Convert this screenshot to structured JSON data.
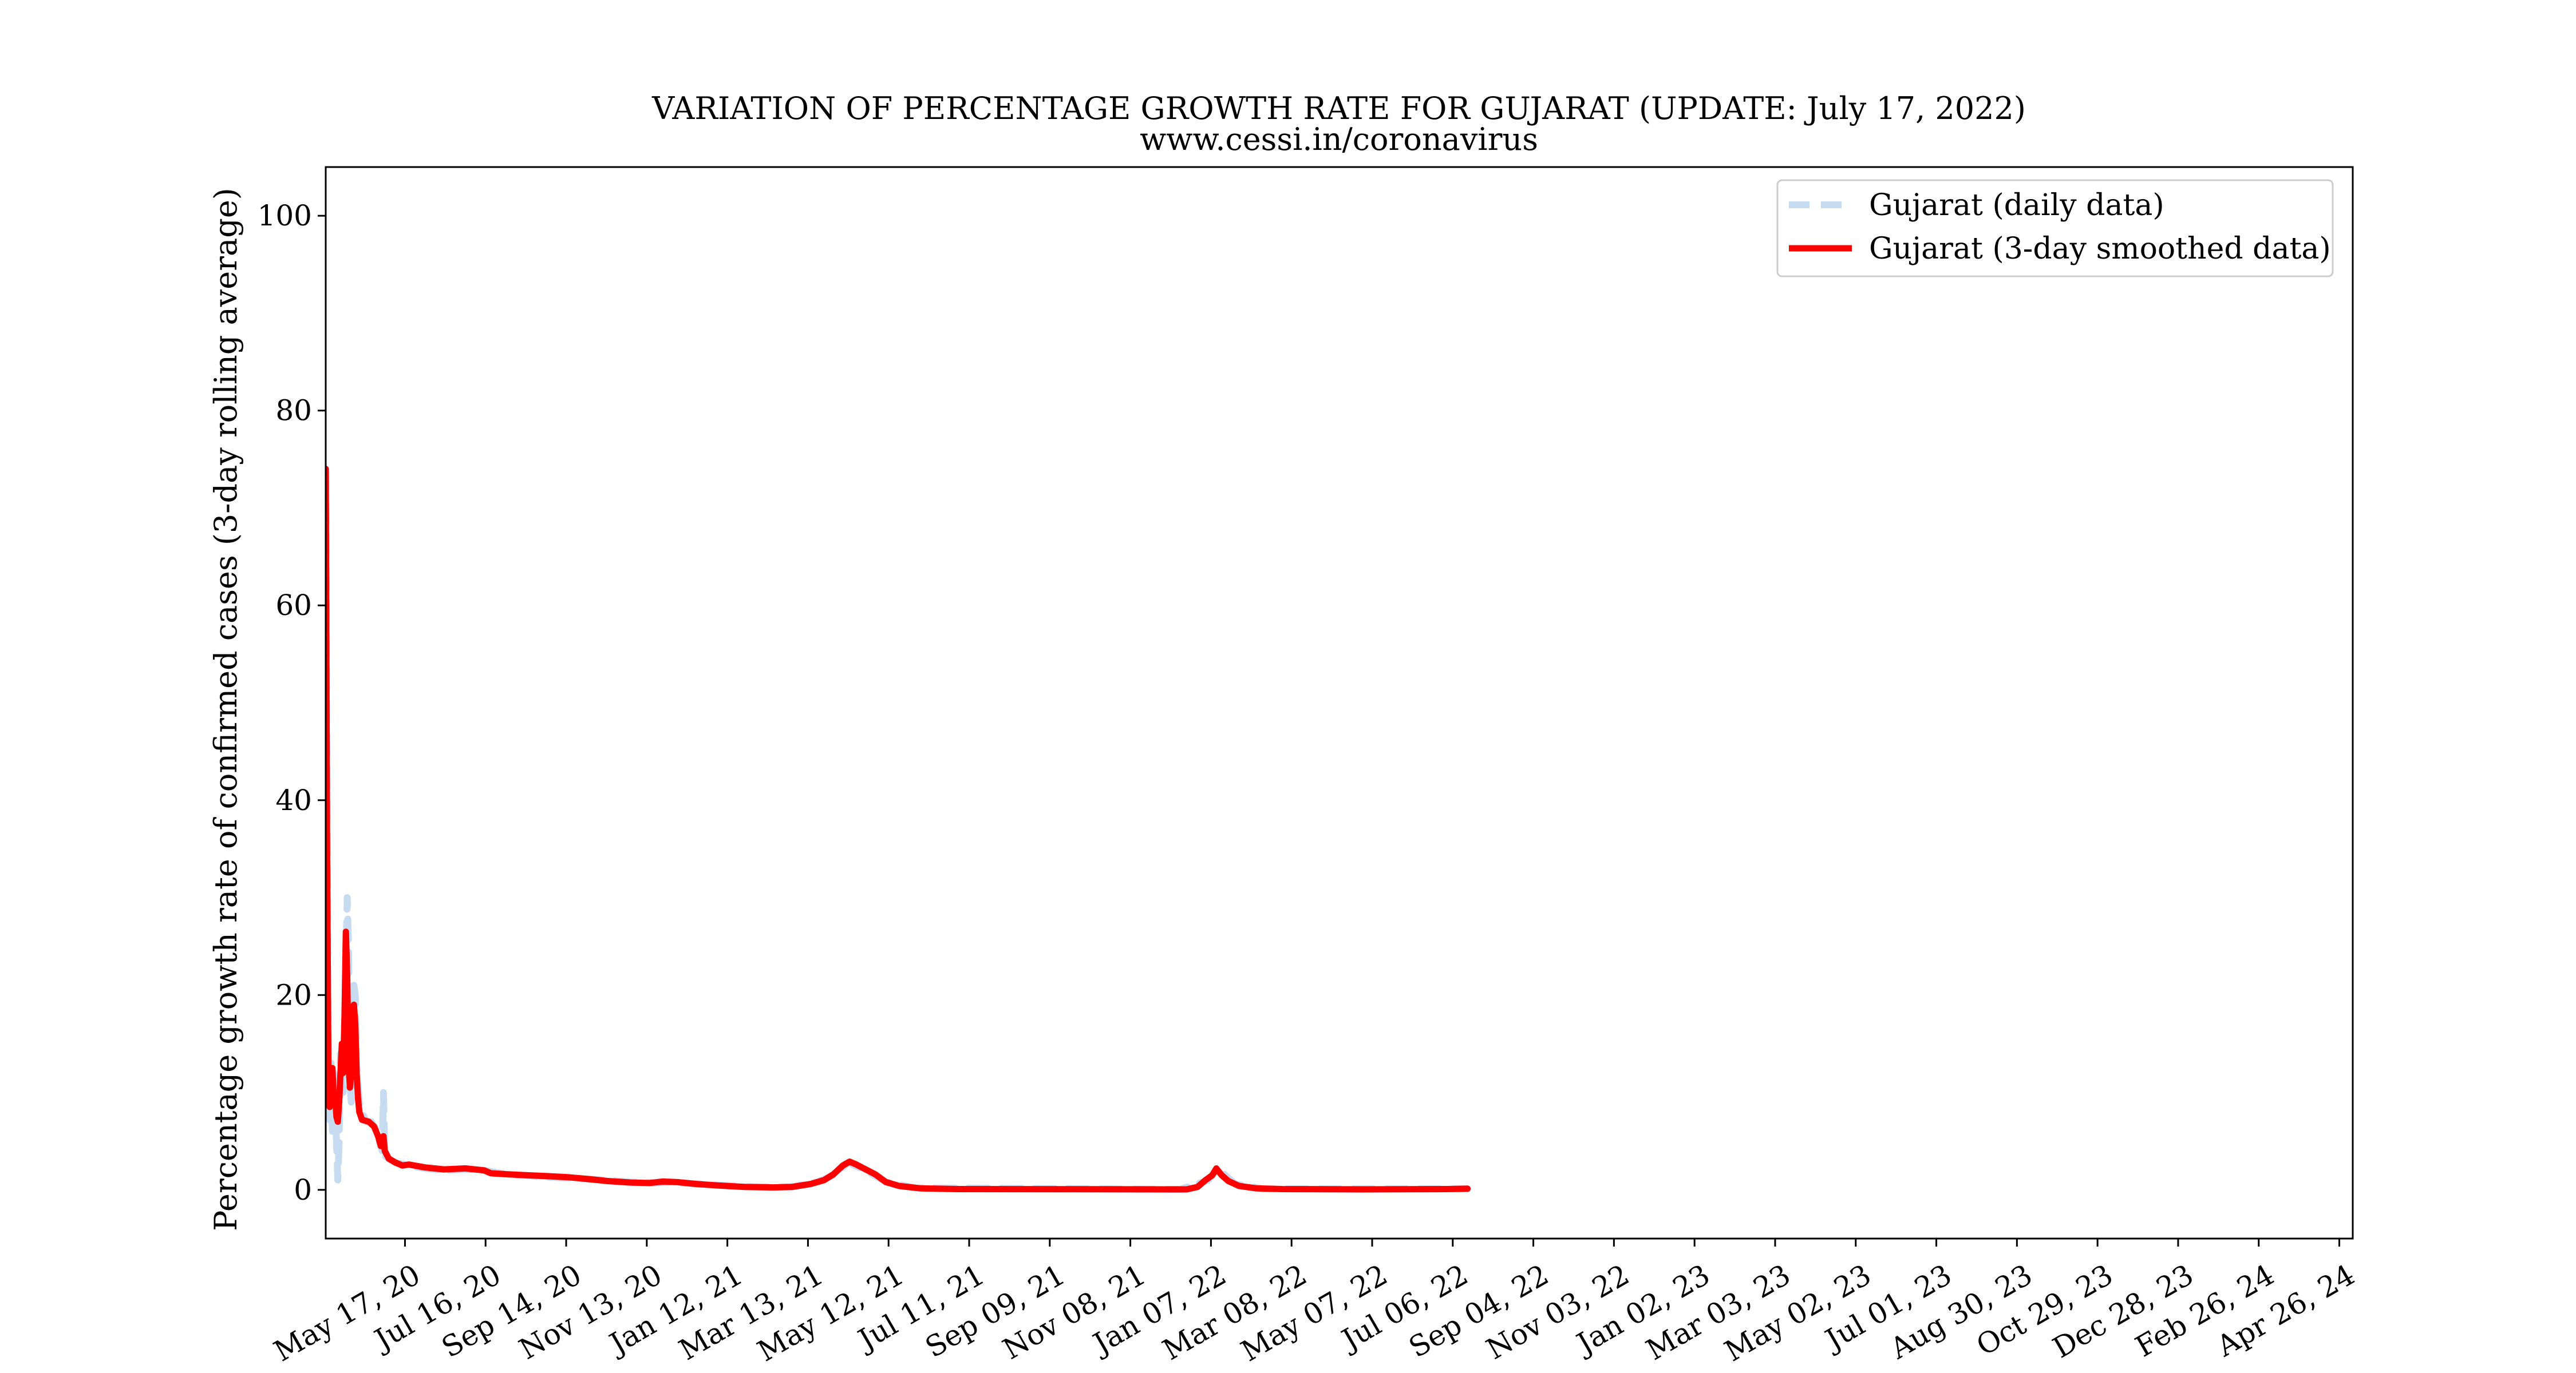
{
  "chart_data": {
    "type": "line",
    "title": "VARIATION OF PERCENTAGE GROWTH RATE FOR GUJARAT (UPDATE: July 17, 2022)",
    "subtitle": "www.cessi.in/coronavirus",
    "xlabel": "",
    "ylabel": "Percentage growth rate of confirmed cases (3-day rolling average)",
    "x_type": "date",
    "xlim": [
      "2020-03-19",
      "2024-05-06"
    ],
    "ylim": [
      -5,
      105
    ],
    "yticks": [
      0,
      20,
      40,
      60,
      80,
      100
    ],
    "xticks": [
      {
        "date": "2020-05-17",
        "label": "May 17, 20"
      },
      {
        "date": "2020-07-16",
        "label": "Jul 16, 20"
      },
      {
        "date": "2020-09-14",
        "label": "Sep 14, 20"
      },
      {
        "date": "2020-11-13",
        "label": "Nov 13, 20"
      },
      {
        "date": "2021-01-12",
        "label": "Jan 12, 21"
      },
      {
        "date": "2021-03-13",
        "label": "Mar 13, 21"
      },
      {
        "date": "2021-05-12",
        "label": "May 12, 21"
      },
      {
        "date": "2021-07-11",
        "label": "Jul 11, 21"
      },
      {
        "date": "2021-09-09",
        "label": "Sep 09, 21"
      },
      {
        "date": "2021-11-08",
        "label": "Nov 08, 21"
      },
      {
        "date": "2022-01-07",
        "label": "Jan 07, 22"
      },
      {
        "date": "2022-03-08",
        "label": "Mar 08, 22"
      },
      {
        "date": "2022-05-07",
        "label": "May 07, 22"
      },
      {
        "date": "2022-07-06",
        "label": "Jul 06, 22"
      },
      {
        "date": "2022-09-04",
        "label": "Sep 04, 22"
      },
      {
        "date": "2022-11-03",
        "label": "Nov 03, 22"
      },
      {
        "date": "2023-01-02",
        "label": "Jan 02, 23"
      },
      {
        "date": "2023-03-03",
        "label": "Mar 03, 23"
      },
      {
        "date": "2023-05-02",
        "label": "May 02, 23"
      },
      {
        "date": "2023-07-01",
        "label": "Jul 01, 23"
      },
      {
        "date": "2023-08-30",
        "label": "Aug 30, 23"
      },
      {
        "date": "2023-10-29",
        "label": "Oct 29, 23"
      },
      {
        "date": "2023-12-28",
        "label": "Dec 28, 23"
      },
      {
        "date": "2024-02-26",
        "label": "Feb 26, 24"
      },
      {
        "date": "2024-04-26",
        "label": "Apr 26, 24"
      }
    ],
    "grid": false,
    "legend_position": "top-right",
    "series": [
      {
        "name": "Gujarat (daily data)",
        "color": "#c6dbef",
        "style": "dashed",
        "points": [
          {
            "x": "2020-03-19",
            "y": 74
          },
          {
            "x": "2020-03-20",
            "y": 40
          },
          {
            "x": "2020-03-21",
            "y": 10
          },
          {
            "x": "2020-03-22",
            "y": 7
          },
          {
            "x": "2020-03-23",
            "y": 13
          },
          {
            "x": "2020-03-24",
            "y": 6
          },
          {
            "x": "2020-03-25",
            "y": 12
          },
          {
            "x": "2020-03-26",
            "y": 9
          },
          {
            "x": "2020-03-27",
            "y": 5
          },
          {
            "x": "2020-03-28",
            "y": 1
          },
          {
            "x": "2020-03-29",
            "y": 5
          },
          {
            "x": "2020-03-30",
            "y": 14
          },
          {
            "x": "2020-04-01",
            "y": 10
          },
          {
            "x": "2020-04-02",
            "y": 16
          },
          {
            "x": "2020-04-04",
            "y": 30
          },
          {
            "x": "2020-04-05",
            "y": 25
          },
          {
            "x": "2020-04-06",
            "y": 11
          },
          {
            "x": "2020-04-07",
            "y": 9
          },
          {
            "x": "2020-04-08",
            "y": 13
          },
          {
            "x": "2020-04-09",
            "y": 21
          },
          {
            "x": "2020-04-10",
            "y": 20
          },
          {
            "x": "2020-04-11",
            "y": 13
          },
          {
            "x": "2020-04-12",
            "y": 11
          },
          {
            "x": "2020-04-13",
            "y": 9
          },
          {
            "x": "2020-04-15",
            "y": 8
          },
          {
            "x": "2020-04-18",
            "y": 7
          },
          {
            "x": "2020-04-22",
            "y": 7
          },
          {
            "x": "2020-04-26",
            "y": 6
          },
          {
            "x": "2020-04-28",
            "y": 5
          },
          {
            "x": "2020-04-30",
            "y": 4
          },
          {
            "x": "2020-05-01",
            "y": 10
          },
          {
            "x": "2020-05-02",
            "y": 3.5
          },
          {
            "x": "2020-05-05",
            "y": 3.2
          },
          {
            "x": "2020-05-10",
            "y": 2.8
          },
          {
            "x": "2020-05-20",
            "y": 2.5
          },
          {
            "x": "2020-06-01",
            "y": 2.2
          },
          {
            "x": "2020-06-15",
            "y": 2
          },
          {
            "x": "2020-07-01",
            "y": 2.1
          },
          {
            "x": "2020-07-15",
            "y": 2
          },
          {
            "x": "2020-08-01",
            "y": 1.6
          },
          {
            "x": "2020-09-01",
            "y": 1.3
          },
          {
            "x": "2020-10-01",
            "y": 1.1
          },
          {
            "x": "2020-11-01",
            "y": 0.8
          },
          {
            "x": "2020-11-20",
            "y": 0.7
          },
          {
            "x": "2020-12-01",
            "y": 0.8
          },
          {
            "x": "2021-01-01",
            "y": 0.5
          },
          {
            "x": "2021-02-01",
            "y": 0.3
          },
          {
            "x": "2021-03-01",
            "y": 0.3
          },
          {
            "x": "2021-03-20",
            "y": 0.8
          },
          {
            "x": "2021-04-01",
            "y": 1.5
          },
          {
            "x": "2021-04-12",
            "y": 2.8
          },
          {
            "x": "2021-04-25",
            "y": 2
          },
          {
            "x": "2021-05-10",
            "y": 0.8
          },
          {
            "x": "2021-06-01",
            "y": 0.2
          },
          {
            "x": "2021-12-15",
            "y": 0.05
          },
          {
            "x": "2022-01-05",
            "y": 1
          },
          {
            "x": "2022-01-12",
            "y": 2.2
          },
          {
            "x": "2022-01-25",
            "y": 0.6
          },
          {
            "x": "2022-02-15",
            "y": 0.1
          },
          {
            "x": "2022-07-17",
            "y": 0.1
          }
        ]
      },
      {
        "name": "Gujarat (3-day smoothed data)",
        "color": "#ff0000",
        "style": "solid",
        "points": [
          {
            "x": "2020-03-19",
            "y": 74
          },
          {
            "x": "2020-03-20",
            "y": 35
          },
          {
            "x": "2020-03-21",
            "y": 12
          },
          {
            "x": "2020-03-22",
            "y": 8.5
          },
          {
            "x": "2020-03-23",
            "y": 10
          },
          {
            "x": "2020-03-24",
            "y": 12.5
          },
          {
            "x": "2020-03-25",
            "y": 9
          },
          {
            "x": "2020-03-26",
            "y": 9.5
          },
          {
            "x": "2020-03-27",
            "y": 7.5
          },
          {
            "x": "2020-03-28",
            "y": 7
          },
          {
            "x": "2020-03-29",
            "y": 9
          },
          {
            "x": "2020-03-30",
            "y": 12
          },
          {
            "x": "2020-03-31",
            "y": 15
          },
          {
            "x": "2020-04-01",
            "y": 12
          },
          {
            "x": "2020-04-02",
            "y": 18
          },
          {
            "x": "2020-04-03",
            "y": 26.5
          },
          {
            "x": "2020-04-04",
            "y": 22
          },
          {
            "x": "2020-04-05",
            "y": 13
          },
          {
            "x": "2020-04-06",
            "y": 10.5
          },
          {
            "x": "2020-04-07",
            "y": 12
          },
          {
            "x": "2020-04-08",
            "y": 16.5
          },
          {
            "x": "2020-04-09",
            "y": 19
          },
          {
            "x": "2020-04-10",
            "y": 17
          },
          {
            "x": "2020-04-11",
            "y": 12
          },
          {
            "x": "2020-04-12",
            "y": 9.5
          },
          {
            "x": "2020-04-13",
            "y": 8
          },
          {
            "x": "2020-04-15",
            "y": 7.2
          },
          {
            "x": "2020-04-20",
            "y": 7
          },
          {
            "x": "2020-04-24",
            "y": 6.5
          },
          {
            "x": "2020-04-27",
            "y": 5.5
          },
          {
            "x": "2020-04-29",
            "y": 4.5
          },
          {
            "x": "2020-05-01",
            "y": 5.5
          },
          {
            "x": "2020-05-02",
            "y": 4
          },
          {
            "x": "2020-05-05",
            "y": 3.2
          },
          {
            "x": "2020-05-10",
            "y": 2.8
          },
          {
            "x": "2020-05-15",
            "y": 2.5
          },
          {
            "x": "2020-05-20",
            "y": 2.6
          },
          {
            "x": "2020-06-01",
            "y": 2.3
          },
          {
            "x": "2020-06-15",
            "y": 2.1
          },
          {
            "x": "2020-07-01",
            "y": 2.2
          },
          {
            "x": "2020-07-15",
            "y": 2
          },
          {
            "x": "2020-07-20",
            "y": 1.7
          },
          {
            "x": "2020-08-01",
            "y": 1.6
          },
          {
            "x": "2020-08-15",
            "y": 1.5
          },
          {
            "x": "2020-09-01",
            "y": 1.4
          },
          {
            "x": "2020-09-15",
            "y": 1.3
          },
          {
            "x": "2020-10-01",
            "y": 1.1
          },
          {
            "x": "2020-10-15",
            "y": 0.9
          },
          {
            "x": "2020-11-01",
            "y": 0.75
          },
          {
            "x": "2020-11-15",
            "y": 0.7
          },
          {
            "x": "2020-11-25",
            "y": 0.85
          },
          {
            "x": "2020-12-05",
            "y": 0.8
          },
          {
            "x": "2020-12-20",
            "y": 0.6
          },
          {
            "x": "2021-01-05",
            "y": 0.45
          },
          {
            "x": "2021-01-25",
            "y": 0.3
          },
          {
            "x": "2021-02-15",
            "y": 0.25
          },
          {
            "x": "2021-03-01",
            "y": 0.3
          },
          {
            "x": "2021-03-15",
            "y": 0.6
          },
          {
            "x": "2021-03-25",
            "y": 1
          },
          {
            "x": "2021-04-01",
            "y": 1.6
          },
          {
            "x": "2021-04-08",
            "y": 2.5
          },
          {
            "x": "2021-04-13",
            "y": 2.9
          },
          {
            "x": "2021-04-18",
            "y": 2.6
          },
          {
            "x": "2021-04-25",
            "y": 2.1
          },
          {
            "x": "2021-05-02",
            "y": 1.6
          },
          {
            "x": "2021-05-10",
            "y": 0.8
          },
          {
            "x": "2021-05-20",
            "y": 0.4
          },
          {
            "x": "2021-06-05",
            "y": 0.15
          },
          {
            "x": "2021-07-01",
            "y": 0.08
          },
          {
            "x": "2021-12-20",
            "y": 0.05
          },
          {
            "x": "2021-12-28",
            "y": 0.3
          },
          {
            "x": "2022-01-03",
            "y": 1
          },
          {
            "x": "2022-01-08",
            "y": 1.5
          },
          {
            "x": "2022-01-11",
            "y": 2.2
          },
          {
            "x": "2022-01-15",
            "y": 1.5
          },
          {
            "x": "2022-01-20",
            "y": 0.9
          },
          {
            "x": "2022-01-28",
            "y": 0.4
          },
          {
            "x": "2022-02-10",
            "y": 0.15
          },
          {
            "x": "2022-03-01",
            "y": 0.08
          },
          {
            "x": "2022-05-01",
            "y": 0.05
          },
          {
            "x": "2022-07-01",
            "y": 0.08
          },
          {
            "x": "2022-07-17",
            "y": 0.12
          }
        ]
      }
    ]
  }
}
